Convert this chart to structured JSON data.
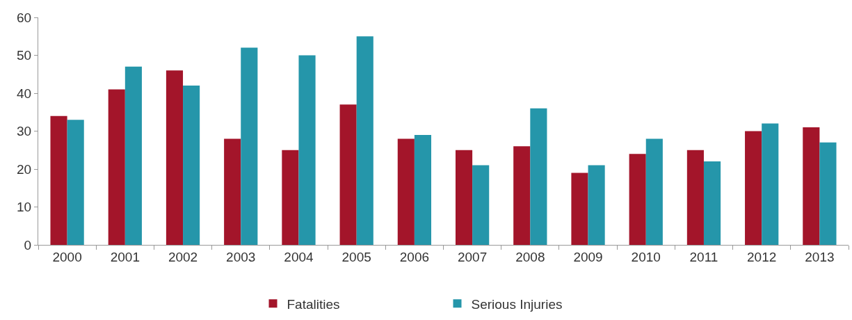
{
  "chart_data": {
    "type": "bar",
    "categories": [
      "2000",
      "2001",
      "2002",
      "2003",
      "2004",
      "2005",
      "2006",
      "2007",
      "2008",
      "2009",
      "2010",
      "2011",
      "2012",
      "2013"
    ],
    "series": [
      {
        "name": "Fatalities",
        "color": "#a3152a",
        "values": [
          34,
          41,
          46,
          28,
          25,
          37,
          28,
          25,
          26,
          19,
          24,
          25,
          30,
          31
        ]
      },
      {
        "name": "Serious Injuries",
        "color": "#2596aa",
        "values": [
          33,
          47,
          42,
          52,
          50,
          55,
          29,
          21,
          36,
          21,
          28,
          22,
          32,
          27
        ]
      }
    ],
    "ylim": [
      0,
      60
    ],
    "yticks": [
      0,
      10,
      20,
      30,
      40,
      50,
      60
    ],
    "grid": false,
    "legend": "bottom"
  }
}
